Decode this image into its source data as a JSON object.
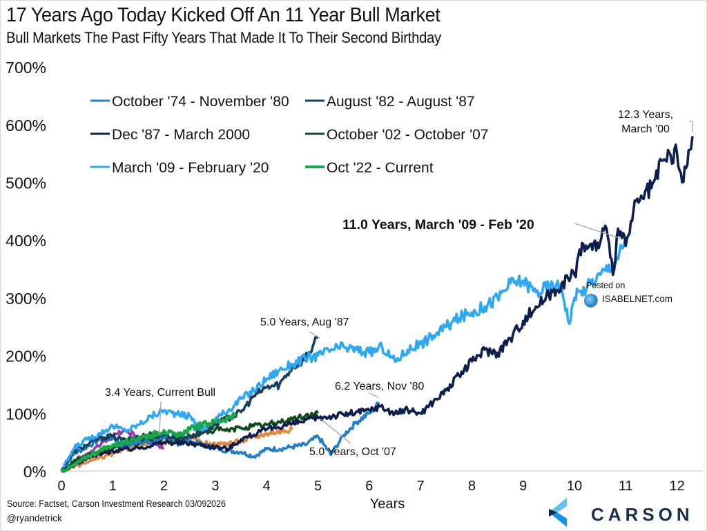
{
  "header": {
    "title": "17 Years Ago Today Kicked Off An 11 Year Bull Market",
    "subtitle": "Bull Markets The Past Fifty Years That Made It To Their Second Birthday"
  },
  "footer": {
    "source": "Source: Factset, Carson Investment Research 03/092026",
    "handle": "@ryandetrick",
    "brand": "CARSON"
  },
  "watermark": {
    "posted": "Posted on",
    "site": "ISABELNET.com"
  },
  "chart_data": {
    "type": "line",
    "title": "17 Years Ago Today Kicked Off An 11 Year Bull Market",
    "subtitle": "Bull Markets The Past Fifty Years That Made It To Their Second Birthday",
    "xlabel": "Years",
    "ylabel": "",
    "xlim": [
      0,
      12.4
    ],
    "ylim": [
      0,
      700
    ],
    "x_ticks": [
      "0",
      "1",
      "2",
      "3",
      "4",
      "5",
      "6",
      "7",
      "8",
      "9",
      "10",
      "11",
      "12"
    ],
    "y_ticks": [
      "0%",
      "100%",
      "200%",
      "300%",
      "400%",
      "500%",
      "600%",
      "700%"
    ],
    "grid": false,
    "legend_position": "top-left",
    "series": [
      {
        "name": "October '74 - November '80",
        "color": "#1f7fc9",
        "in_legend": true,
        "x": [
          0,
          0.25,
          0.5,
          0.75,
          1,
          1.25,
          1.5,
          1.75,
          2,
          2.25,
          2.5,
          2.75,
          3,
          3.25,
          3.5,
          3.75,
          4,
          4.25,
          4.5,
          4.75,
          5,
          5.1,
          5.25,
          5.5,
          5.75,
          6,
          6.2
        ],
        "y": [
          0,
          30,
          42,
          55,
          58,
          40,
          52,
          48,
          60,
          48,
          52,
          45,
          40,
          35,
          33,
          25,
          38,
          38,
          42,
          45,
          60,
          48,
          28,
          62,
          85,
          100,
          118
        ]
      },
      {
        "name": "August '82 - August '87",
        "color": "#17405c",
        "in_legend": true,
        "x": [
          0,
          0.25,
          0.5,
          0.75,
          1,
          1.25,
          1.5,
          1.75,
          2,
          2.25,
          2.5,
          2.75,
          3,
          3.25,
          3.5,
          3.75,
          4,
          4.25,
          4.5,
          4.75,
          5
        ],
        "y": [
          0,
          35,
          45,
          58,
          60,
          52,
          58,
          65,
          62,
          58,
          60,
          68,
          80,
          92,
          102,
          130,
          145,
          150,
          180,
          195,
          230
        ]
      },
      {
        "name": "Dec '87 - March 2000",
        "color": "#0d1f4f",
        "in_legend": true,
        "x": [
          0,
          0.5,
          1,
          1.5,
          2,
          2.5,
          3,
          3.25,
          3.5,
          4,
          4.5,
          5,
          5.5,
          6,
          6.2,
          6.5,
          6.75,
          7,
          7.25,
          7.5,
          7.75,
          8,
          8.25,
          8.5,
          8.75,
          9,
          9.25,
          9.5,
          9.75,
          10,
          10.15,
          10.25,
          10.5,
          10.6,
          10.75,
          10.85,
          11,
          11.15,
          11.25,
          11.5,
          11.75,
          12,
          12.1,
          12.2,
          12.3
        ],
        "y": [
          0,
          22,
          35,
          40,
          50,
          48,
          42,
          38,
          55,
          72,
          82,
          92,
          98,
          105,
          112,
          100,
          106,
          100,
          120,
          140,
          165,
          190,
          210,
          205,
          230,
          260,
          285,
          305,
          325,
          340,
          395,
          385,
          395,
          425,
          340,
          420,
          390,
          450,
          465,
          490,
          540,
          550,
          500,
          530,
          580
        ]
      },
      {
        "name": "October '02 - October '07",
        "color": "#124a1e",
        "in_legend": true,
        "x": [
          0,
          0.25,
          0.5,
          0.75,
          1,
          1.25,
          1.5,
          1.75,
          2,
          2.25,
          2.5,
          2.75,
          3,
          3.25,
          3.5,
          3.75,
          4,
          4.25,
          4.5,
          4.75,
          5
        ],
        "y": [
          0,
          18,
          25,
          32,
          38,
          45,
          48,
          55,
          58,
          55,
          60,
          65,
          72,
          70,
          75,
          78,
          80,
          85,
          90,
          95,
          100
        ]
      },
      {
        "name": "March '09 - February '20",
        "color": "#2ea8f2",
        "in_legend": true,
        "x": [
          0,
          0.25,
          0.5,
          0.75,
          1,
          1.25,
          1.5,
          1.75,
          2,
          2.25,
          2.5,
          2.75,
          3,
          3.25,
          3.5,
          3.75,
          4,
          4.25,
          4.5,
          4.75,
          5,
          5.25,
          5.5,
          5.75,
          6,
          6.25,
          6.5,
          6.75,
          7,
          7.25,
          7.5,
          7.75,
          8,
          8.25,
          8.5,
          8.75,
          9,
          9.25,
          9.5,
          9.75,
          9.9,
          10,
          10.25,
          10.5,
          10.75,
          11
        ],
        "y": [
          0,
          40,
          55,
          65,
          78,
          70,
          80,
          95,
          105,
          98,
          95,
          70,
          90,
          105,
          125,
          140,
          160,
          175,
          185,
          195,
          200,
          210,
          215,
          210,
          205,
          215,
          190,
          210,
          220,
          235,
          250,
          265,
          275,
          285,
          300,
          325,
          330,
          310,
          320,
          320,
          255,
          300,
          320,
          340,
          360,
          395
        ]
      },
      {
        "name": "Oct '22 - Current",
        "color": "#16a84a",
        "in_legend": true,
        "x": [
          0,
          0.25,
          0.5,
          0.75,
          1,
          1.25,
          1.5,
          1.75,
          2,
          2.25,
          2.5,
          2.75,
          3,
          3.25,
          3.4
        ],
        "y": [
          0,
          10,
          25,
          35,
          45,
          50,
          58,
          62,
          70,
          60,
          72,
          80,
          85,
          92,
          95
        ]
      },
      {
        "name": "Other bull market (orange)",
        "color": "#e8843a",
        "in_legend": false,
        "x": [
          0,
          0.5,
          1,
          1.5,
          2,
          2.5,
          3,
          3.5,
          4,
          4.5
        ],
        "y": [
          0,
          15,
          30,
          45,
          50,
          55,
          45,
          52,
          65,
          72
        ]
      },
      {
        "name": "Other bull market (purple)",
        "color": "#9b3aa6",
        "in_legend": false,
        "x": [
          0,
          0.3,
          0.6,
          0.9,
          1.2,
          1.5,
          1.8,
          2.0
        ],
        "y": [
          0,
          20,
          35,
          55,
          70,
          60,
          48,
          40
        ]
      }
    ],
    "annotations": [
      {
        "text": "12.3 Years,",
        "text2": "March '00",
        "x": 12.3,
        "y": 580,
        "bold": false
      },
      {
        "text": "11.0 Years, March '09 - Feb '20",
        "x": 11.0,
        "y": 395,
        "bold": true
      },
      {
        "text": "5.0 Years, Aug '87",
        "x": 5.0,
        "y": 230,
        "bold": false
      },
      {
        "text": "6.2 Years, Nov '80",
        "x": 6.2,
        "y": 118,
        "bold": false
      },
      {
        "text": "3.4 Years, Current Bull",
        "x": 2.0,
        "y": 60,
        "bold": false
      },
      {
        "text": "5.0 Years, Oct '07",
        "x": 5.0,
        "y": 100,
        "bold": false
      }
    ]
  }
}
